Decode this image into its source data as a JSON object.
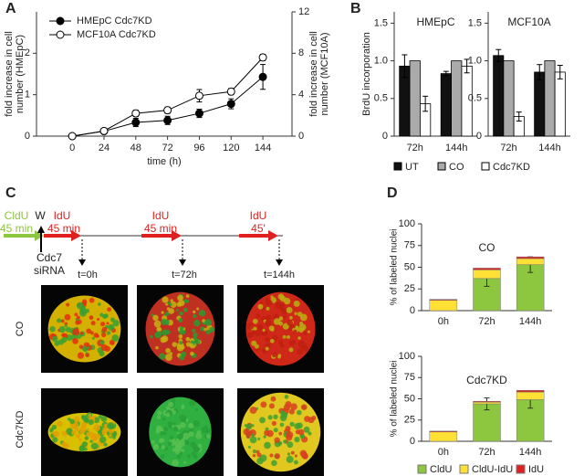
{
  "figure": {
    "panels": [
      "A",
      "B",
      "C",
      "D"
    ],
    "timeline": {
      "cldu": "CldU",
      "cldu_time": "45 min",
      "wash": "W",
      "pulses": [
        {
          "label": "IdU",
          "time": "45 min",
          "timepoint": "t=0h"
        },
        {
          "label": "IdU",
          "time": "45 min",
          "timepoint": "t=72h"
        },
        {
          "label": "IdU",
          "time": "45'",
          "timepoint": "t=144h"
        }
      ],
      "sirna": [
        "Cdc7",
        "siRNA"
      ]
    },
    "rows": [
      "CO",
      "Cdc7KD"
    ]
  },
  "chart_data": [
    {
      "type": "line",
      "xlabel": "time (h)",
      "ylabel": [
        "fold increase in cell",
        "number (HMEpC)"
      ],
      "y2label": [
        "fold increase in cell",
        "number (MCF10A)"
      ],
      "x": [
        0,
        24,
        48,
        72,
        96,
        120,
        144
      ],
      "xlim": [
        -27,
        166
      ],
      "xticks": [
        0,
        24,
        48,
        72,
        96,
        120,
        144
      ],
      "ylim": [
        0,
        3
      ],
      "yticks": [
        0,
        1,
        2
      ],
      "y2lim": [
        0,
        12
      ],
      "y2ticks": [
        0,
        4,
        8,
        12
      ],
      "legend": "upper left",
      "series": [
        {
          "name": "HMEpC Cdc7KD",
          "color": "#000000",
          "marker_fill": "#000000",
          "axis": "y",
          "values": [
            0,
            0.12,
            0.33,
            0.38,
            0.55,
            0.78,
            1.43
          ],
          "errors": [
            0,
            0.05,
            0.1,
            0.1,
            0.1,
            0.12,
            0.3
          ]
        },
        {
          "name": "MCF10A Cdc7KD",
          "color": "#000000",
          "marker_fill": "#ffffff",
          "axis": "y2",
          "values": [
            0,
            0.5,
            2.2,
            2.5,
            3.9,
            4.3,
            7.6
          ],
          "errors": [
            0,
            0.2,
            0.3,
            0.3,
            0.6,
            0.3,
            0.3
          ]
        }
      ]
    },
    {
      "type": "bar",
      "title": "HMEpC",
      "ylabel": "BrdU incorporation",
      "categories": [
        "72h",
        "144h"
      ],
      "ylim": [
        0,
        1.65
      ],
      "yticks": [
        0,
        0.5,
        {
          "value": 1,
          "label": "1.0"
        },
        1.5
      ],
      "series": [
        {
          "name": "UT",
          "color": "#111111",
          "values": [
            0.93,
            0.83
          ],
          "errors": [
            0.15,
            0.03
          ]
        },
        {
          "name": "CO",
          "color": "#aaaaaa",
          "values": [
            1.0,
            1.0
          ],
          "errors": [
            0,
            0
          ]
        },
        {
          "name": "Cdc7KD",
          "color": "#ffffff",
          "values": [
            0.43,
            0.93
          ],
          "errors": [
            0.1,
            0.09
          ]
        }
      ]
    },
    {
      "type": "bar",
      "title": "MCF10A",
      "categories": [
        "72h",
        "144h"
      ],
      "ylim": [
        0,
        1.65
      ],
      "yticks": [
        0,
        0.5,
        {
          "value": 1,
          "label": "1.0"
        },
        1.5
      ],
      "series": [
        {
          "color": "#111111",
          "values": [
            1.07,
            0.85
          ],
          "errors": [
            0.08,
            0.1
          ]
        },
        {
          "color": "#aaaaaa",
          "values": [
            1.0,
            1.0
          ],
          "errors": [
            0,
            0
          ]
        },
        {
          "color": "#ffffff",
          "values": [
            0.26,
            0.85
          ],
          "errors": [
            0.06,
            0.09
          ]
        }
      ]
    },
    {
      "type": "stacked_bar",
      "title": "CO",
      "ylabel": "% of labeled nuclei",
      "categories": [
        "0h",
        "72h",
        "144h"
      ],
      "ylim": [
        0,
        100
      ],
      "yticks": [
        0,
        25,
        50,
        75,
        100
      ],
      "series": [
        {
          "color": "#8dc63f",
          "values": [
            0,
            37,
            53
          ],
          "errors": [
            0,
            9,
            9
          ]
        },
        {
          "color": "#ffe135",
          "values": [
            12,
            10,
            7
          ]
        },
        {
          "color": "#e02020",
          "values": [
            1,
            2,
            2
          ]
        }
      ]
    },
    {
      "type": "stacked_bar",
      "title": "Cdc7KD",
      "ylabel": "% of labeled nuclei",
      "categories": [
        "0h",
        "72h",
        "144h"
      ],
      "ylim": [
        0,
        100
      ],
      "yticks": [
        0,
        25,
        50,
        75,
        100
      ],
      "series": [
        {
          "name": "CldU",
          "color": "#8dc63f",
          "values": [
            0,
            44,
            49
          ],
          "errors": [
            0,
            7,
            10
          ]
        },
        {
          "name": "CldU-IdU",
          "color": "#ffe135",
          "values": [
            11,
            2,
            9
          ]
        },
        {
          "name": "IdU",
          "color": "#e02020",
          "values": [
            1,
            1,
            2
          ]
        }
      ]
    }
  ]
}
